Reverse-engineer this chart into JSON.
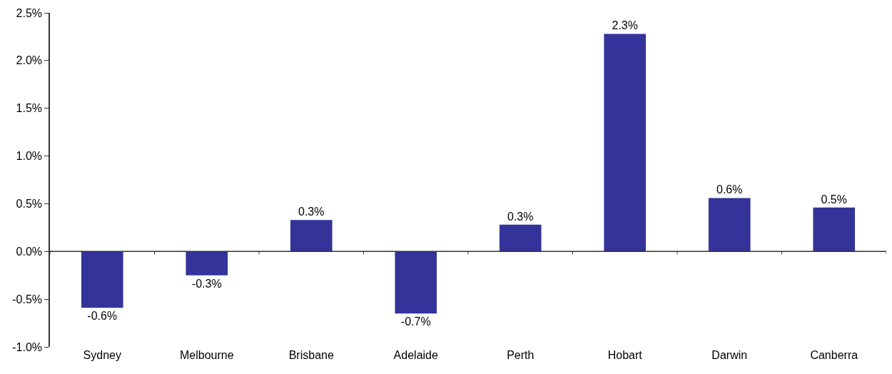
{
  "chart_data": {
    "type": "bar",
    "categories": [
      "Sydney",
      "Melbourne",
      "Brisbane",
      "Adelaide",
      "Perth",
      "Hobart",
      "Darwin",
      "Canberra"
    ],
    "values": [
      -0.59,
      -0.25,
      0.33,
      -0.65,
      0.28,
      2.28,
      0.56,
      0.46
    ],
    "value_labels": [
      "-0.6%",
      "-0.3%",
      "0.3%",
      "-0.7%",
      "0.3%",
      "2.3%",
      "0.6%",
      "0.5%"
    ],
    "color": "#333399",
    "ylim": [
      -1.0,
      2.5
    ],
    "yticks": [
      {
        "value": -1.0,
        "label": "-1.0%"
      },
      {
        "value": -0.5,
        "label": "-0.5%"
      },
      {
        "value": 0,
        "label": "0.0%"
      },
      {
        "value": 0.5,
        "label": "0.5%"
      },
      {
        "value": 1.0,
        "label": "1.0%"
      },
      {
        "value": 1.5,
        "label": "1.5%"
      },
      {
        "value": 2.0,
        "label": "2.0%"
      },
      {
        "value": 2.5,
        "label": "2.5%"
      }
    ],
    "legend": false
  }
}
